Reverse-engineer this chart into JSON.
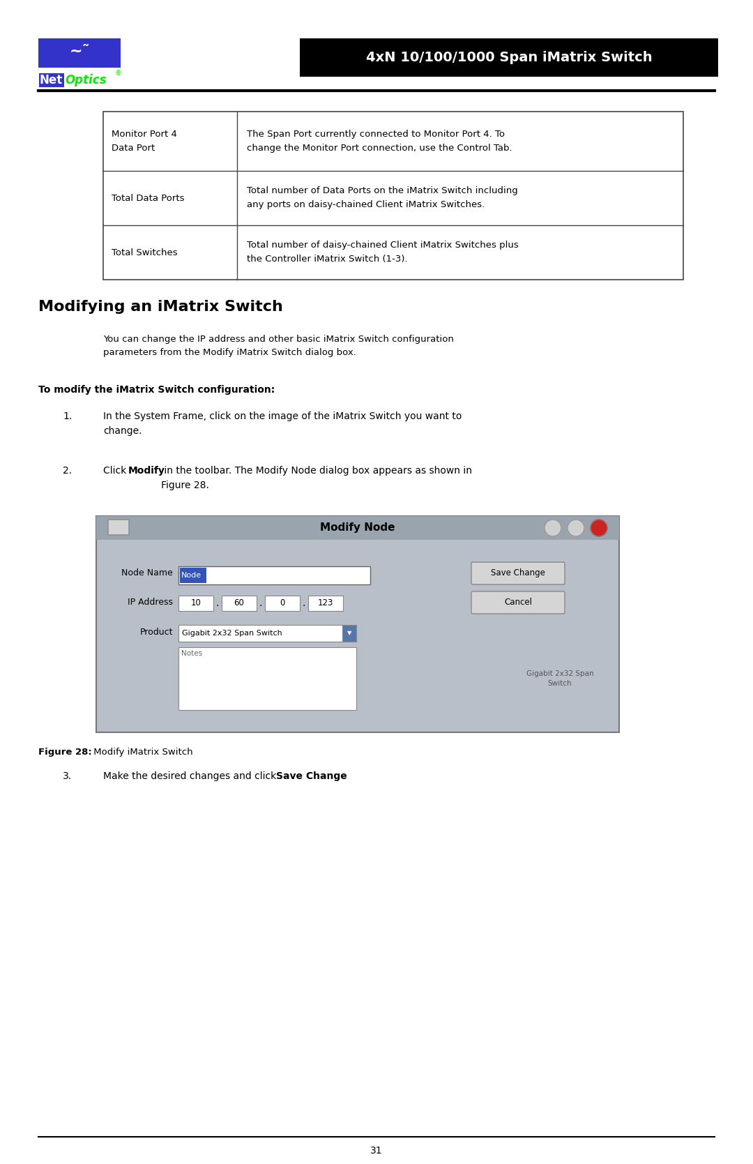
{
  "page_width": 10.8,
  "page_height": 16.69,
  "bg_color": "#ffffff",
  "header": {
    "logo_box_color": "#3333cc",
    "logo_text_net": "Net",
    "logo_text_optics": "Optics",
    "logo_net_color": "#ffffff",
    "logo_optics_color": "#00ff00",
    "title_box_color": "#000000",
    "title_text": "4xN 10/100/1000 Span iMatrix Switch",
    "title_text_color": "#ffffff"
  },
  "table": {
    "rows": [
      {
        "col1": "Monitor Port 4\nData Port",
        "col2": "The Span Port currently connected to Monitor Port 4. To\nchange the Monitor Port connection, use the Control Tab."
      },
      {
        "col1": "Total Data Ports",
        "col2": "Total number of Data Ports on the iMatrix Switch including\nany ports on daisy-chained Client iMatrix Switches."
      },
      {
        "col1": "Total Switches",
        "col2": "Total number of daisy-chained Client iMatrix Switches plus\nthe Controller iMatrix Switch (1-3)."
      }
    ],
    "border_color": "#444444",
    "text_color": "#000000"
  },
  "section_title": "Modifying an iMatrix Switch",
  "paragraph": "You can change the IP address and other basic iMatrix Switch configuration\nparameters from the Modify iMatrix Switch dialog box.",
  "bold_heading": "To modify the iMatrix Switch configuration:",
  "steps": [
    {
      "num": "1.",
      "text_plain": "In the System Frame, click on the image of the iMatrix Switch you want to\nchange."
    },
    {
      "num": "2.",
      "text_pre_bold": "Click ",
      "text_bold": "Modify",
      "text_post_bold": " in the toolbar. The Modify Node dialog box appears as shown in\nFigure 28."
    },
    {
      "num": "3.",
      "text_pre_bold": "Make the desired changes and click ",
      "text_bold": "Save Change",
      "text_post_bold": "."
    }
  ],
  "figure_caption_bold": "Figure 28:",
  "figure_caption_normal": " Modify iMatrix Switch",
  "dialog": {
    "bg_color": "#b8bfc8",
    "title": "Modify Node",
    "node_name_label": "Node Name",
    "node_name_value": "Node",
    "node_name_highlight": "#3355bb",
    "ip_label": "IP Address",
    "ip_values": [
      "10",
      "60",
      "0",
      "123"
    ],
    "product_label": "Product",
    "product_value": "Gigabit 2x32 Span Switch",
    "notes_label": "Notes",
    "save_button": "Save Change",
    "cancel_button": "Cancel",
    "side_text": "Gigabit 2x32 Span\nSwitch"
  },
  "footer_line_color": "#000000",
  "page_number": "31"
}
